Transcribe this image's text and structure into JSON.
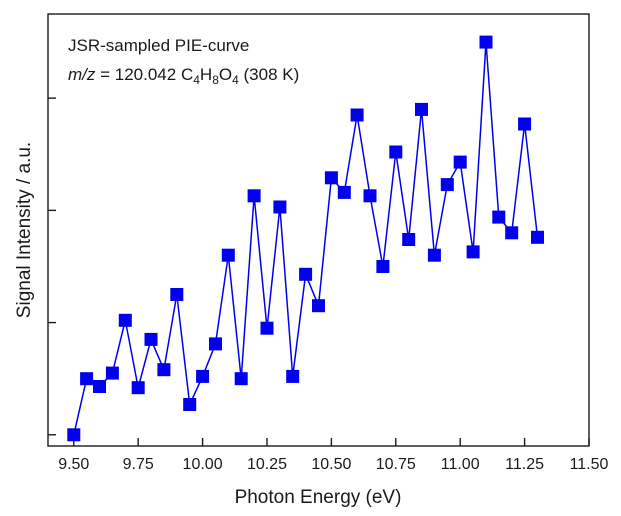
{
  "chart_data": {
    "type": "line",
    "annotation": {
      "line1": "JSR-sampled PIE-curve",
      "line2_italic": "m/z",
      "line2_a": " = 120.042 C",
      "sub_c": "4",
      "line2_h": "H",
      "sub_h": "8",
      "line2_o": "O",
      "sub_o": "4",
      "line2_end": " (308 K)"
    },
    "xlabel": "Photon Energy (eV)",
    "ylabel": "Signal Intensity / a.u.",
    "xlim": [
      9.4,
      11.5
    ],
    "ylim": [
      0.0,
      3.85
    ],
    "xticks": [
      "9.50",
      "9.75",
      "10.00",
      "10.25",
      "10.50",
      "10.75",
      "11.00",
      "11.25",
      "11.50"
    ],
    "xtick_values": [
      9.5,
      9.75,
      10.0,
      10.25,
      10.5,
      10.75,
      11.0,
      11.25,
      11.5
    ],
    "ytick_values": [
      0.1,
      1.1,
      2.1,
      3.1
    ],
    "marker": "square",
    "color": "#0000ee",
    "series": [
      {
        "x": [
          9.5,
          9.55,
          9.6,
          9.65,
          9.7,
          9.75,
          9.8,
          9.85,
          9.9,
          9.95,
          10.0,
          10.05,
          10.1,
          10.15,
          10.2,
          10.25,
          10.3,
          10.35,
          10.4,
          10.45,
          10.5,
          10.55,
          10.6,
          10.65,
          10.7,
          10.75,
          10.8,
          10.85,
          10.9,
          10.95,
          11.0,
          11.05,
          11.1,
          11.15,
          11.2,
          11.25,
          11.3
        ],
        "y": [
          0.1,
          0.6,
          0.53,
          0.65,
          1.12,
          0.52,
          0.95,
          0.68,
          1.35,
          0.37,
          0.62,
          0.91,
          1.7,
          0.6,
          2.23,
          1.05,
          2.13,
          0.62,
          1.53,
          1.25,
          2.39,
          2.26,
          2.95,
          2.23,
          1.6,
          2.62,
          1.84,
          3.0,
          1.7,
          2.33,
          2.53,
          1.73,
          3.6,
          2.04,
          1.9,
          2.87,
          1.86
        ]
      }
    ]
  }
}
